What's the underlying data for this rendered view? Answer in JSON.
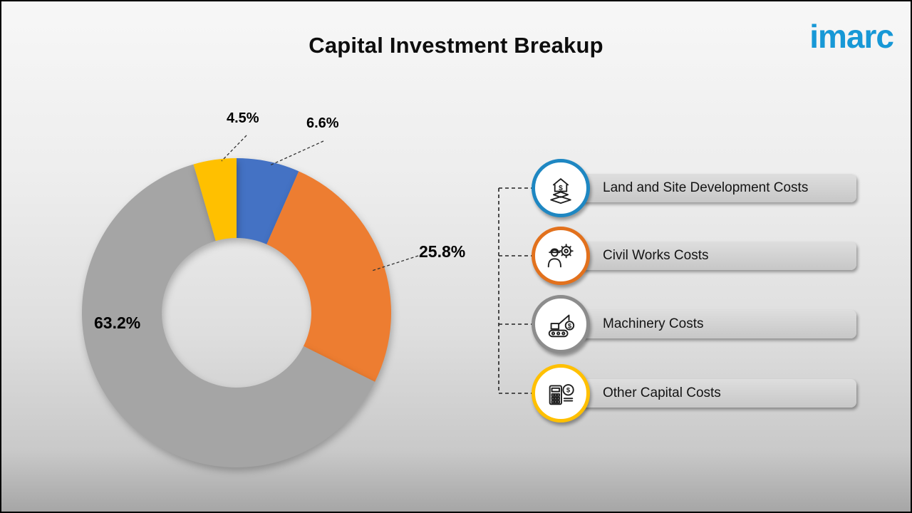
{
  "page": {
    "title": "Capital Investment Breakup",
    "logo": "imarc",
    "logo_color": "#1798d6"
  },
  "chart_data": {
    "type": "pie",
    "subtype": "donut",
    "title": "Capital Investment Breakup",
    "start_angle_deg": 0,
    "direction": "clockwise",
    "legend_position": "right",
    "segments": [
      {
        "label": "Land and Site Development Costs",
        "value": 6.6,
        "pct_label": "6.6%",
        "color": "#4472C4"
      },
      {
        "label": "Civil Works Costs",
        "value": 25.8,
        "pct_label": "25.8%",
        "color": "#ED7D31"
      },
      {
        "label": "Machinery Costs",
        "value": 63.2,
        "pct_label": "63.2%",
        "color": "#A5A5A5"
      },
      {
        "label": "Other Capital Costs",
        "value": 4.5,
        "pct_label": "4.5%",
        "color": "#FFC000"
      }
    ]
  },
  "legend": {
    "items": [
      {
        "label": "Land and Site Development Costs",
        "ring_color": "#1E87C2",
        "icon": "land-development-icon"
      },
      {
        "label": "Civil Works Costs",
        "ring_color": "#E2711D",
        "icon": "civil-works-icon"
      },
      {
        "label": "Machinery Costs",
        "ring_color": "#8C8C8C",
        "icon": "machinery-icon"
      },
      {
        "label": "Other Capital Costs",
        "ring_color": "#FFC000",
        "icon": "other-capital-icon"
      }
    ]
  }
}
